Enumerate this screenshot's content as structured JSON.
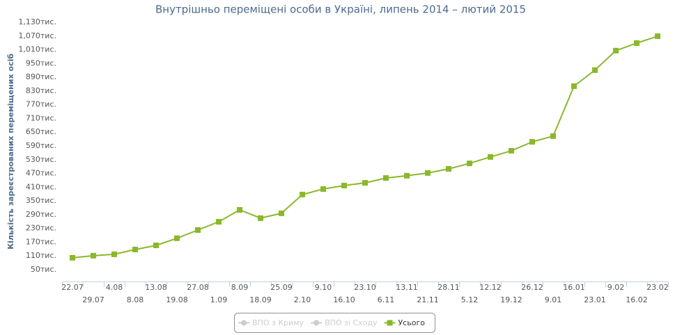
{
  "chart_data": {
    "type": "line",
    "title": "Внутрішньо переміщені особи в Україні, липень 2014 – лютий 2015",
    "y_axis_label": "Кількість зареєстрованих переміщених осіб",
    "categories": [
      "22.07",
      "29.07",
      "4.08",
      "8.08",
      "13.08",
      "19.08",
      "27.08",
      "1.09",
      "8.09",
      "18.09",
      "25.09",
      "2.10",
      "9.10",
      "16.10",
      "23.10",
      "6.11",
      "13.11",
      "21.11",
      "28.11",
      "5.12",
      "12.12",
      "19.12",
      "26.12",
      "9.01",
      "16.01",
      "23.01",
      "9.02",
      "16.02",
      "23.02"
    ],
    "series": [
      {
        "name": "ВПО з Криму",
        "color": "#cccccc",
        "visible": false
      },
      {
        "name": "ВПО зі Сходу",
        "color": "#cccccc",
        "visible": false
      },
      {
        "name": "Усього",
        "color": "#8bb82b",
        "visible": true,
        "values": [
          102,
          111,
          117,
          138,
          156,
          187,
          223,
          259,
          311,
          275,
          296,
          378,
          402,
          417,
          429,
          450,
          460,
          472,
          490,
          514,
          542,
          569,
          608,
          633,
          851,
          921,
          1006,
          1039,
          1069
        ]
      }
    ],
    "ylim": [
      50,
      1130
    ],
    "yticks": [
      {
        "value": 50,
        "label": "50тис."
      },
      {
        "value": 110,
        "label": "110тис."
      },
      {
        "value": 170,
        "label": "170тис."
      },
      {
        "value": 230,
        "label": "230тис."
      },
      {
        "value": 290,
        "label": "290тис."
      },
      {
        "value": 350,
        "label": "350тис."
      },
      {
        "value": 410,
        "label": "410тис."
      },
      {
        "value": 470,
        "label": "470тис."
      },
      {
        "value": 530,
        "label": "530тис."
      },
      {
        "value": 590,
        "label": "590тис."
      },
      {
        "value": 650,
        "label": "650тис."
      },
      {
        "value": 710,
        "label": "710тис."
      },
      {
        "value": 770,
        "label": "770тис."
      },
      {
        "value": 830,
        "label": "830тис."
      },
      {
        "value": 890,
        "label": "890тис."
      },
      {
        "value": 950,
        "label": "950тис."
      },
      {
        "value": 1010,
        "label": "1,010тис."
      },
      {
        "value": 1070,
        "label": "1,070тис."
      },
      {
        "value": 1130,
        "label": "1,130тис."
      }
    ],
    "grid": false
  }
}
